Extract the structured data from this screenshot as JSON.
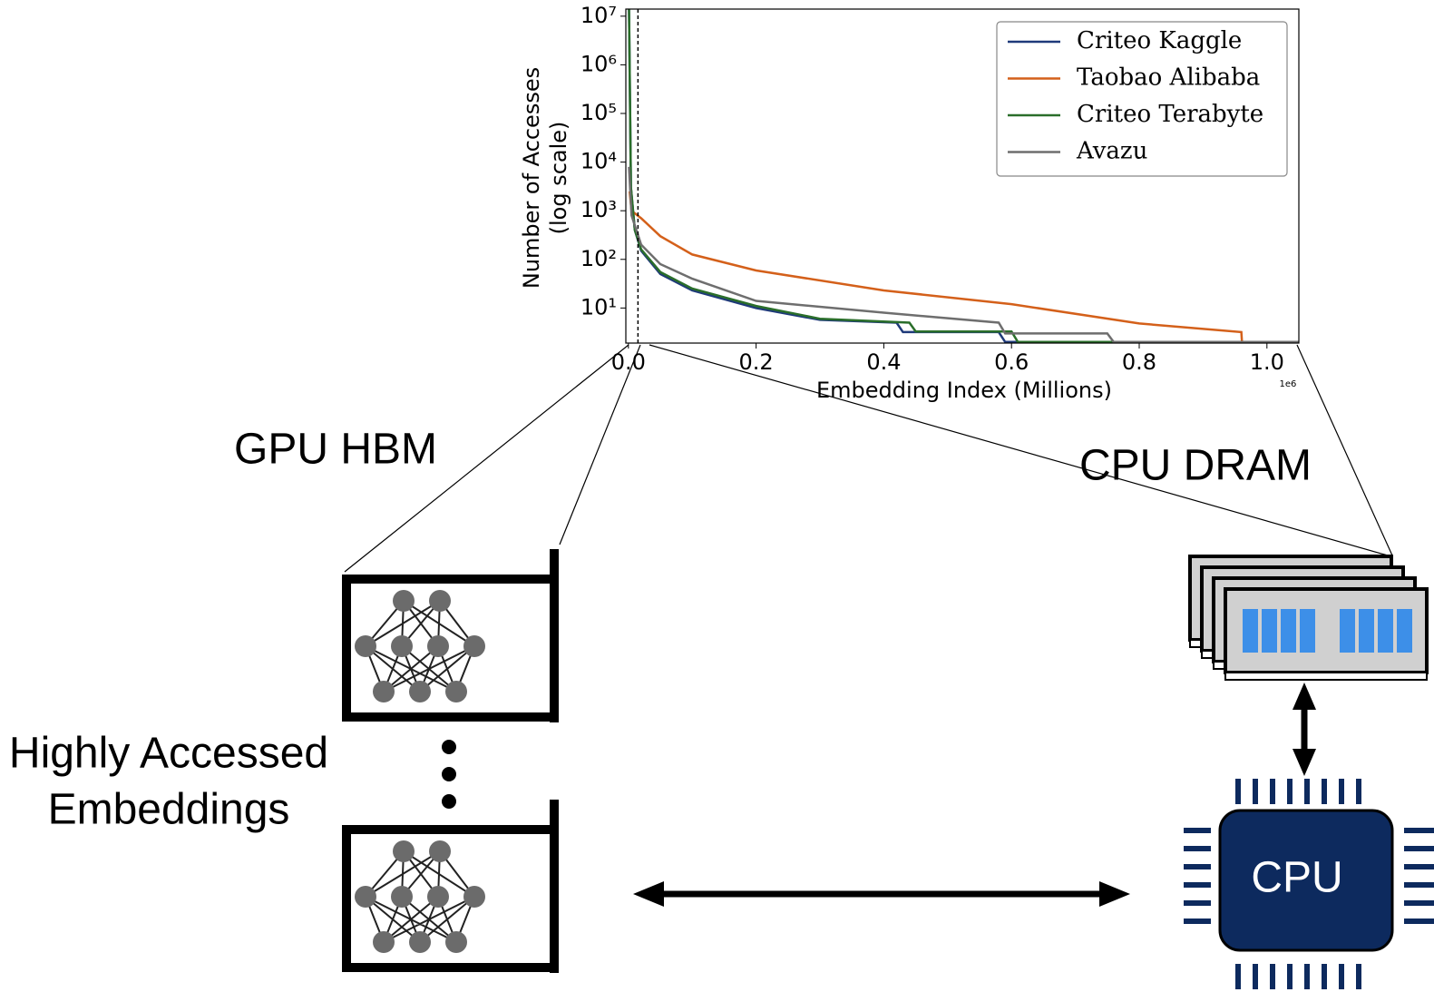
{
  "chart_data": {
    "type": "line",
    "ylabel": [
      "Number of Accesses",
      "(log scale)"
    ],
    "xlabel": "Embedding Index (Millions)",
    "x_offset_label": "1e6",
    "log_y": true,
    "xlim": [
      -0.004,
      1.05
    ],
    "ylim": [
      1.9,
      14000000
    ],
    "xticks": [
      {
        "value": 0,
        "label": "0.0"
      },
      0.2,
      0.4,
      0.6,
      0.8,
      {
        "value": 1,
        "label": "1.0"
      }
    ],
    "yticks": [
      {
        "value": 10,
        "label": "10¹"
      },
      {
        "value": 100,
        "label": "10²"
      },
      {
        "value": 1000,
        "label": "10³"
      },
      {
        "value": 10000,
        "label": "10⁴"
      },
      {
        "value": 100000,
        "label": "10⁵"
      },
      {
        "value": 1000000,
        "label": "10⁶"
      },
      {
        "value": 10000000,
        "label": "10⁷"
      }
    ],
    "legend": "upper right",
    "series": [
      {
        "name": "Criteo Kaggle",
        "color": "#1f3a7a",
        "x": [
          0.001,
          0.004,
          0.01,
          0.02,
          0.05,
          0.1,
          0.2,
          0.3,
          0.42,
          0.43,
          0.58,
          0.59,
          0.75,
          1.05
        ],
        "values": [
          14000000,
          3000,
          400,
          150,
          50,
          23,
          10,
          5.7,
          5,
          3.2,
          3.2,
          2,
          2,
          2
        ]
      },
      {
        "name": "Taobao Alibaba",
        "color": "#d4601a",
        "x": [
          0.002,
          0.005,
          0.02,
          0.05,
          0.1,
          0.2,
          0.4,
          0.6,
          0.8,
          0.96,
          0.961
        ],
        "values": [
          2500,
          1000,
          700,
          300,
          126,
          59,
          23,
          12,
          4.8,
          3.2,
          2
        ]
      },
      {
        "name": "Criteo Terabyte",
        "color": "#2a6e2a",
        "x": [
          0.001,
          0.004,
          0.01,
          0.02,
          0.05,
          0.1,
          0.2,
          0.3,
          0.44,
          0.45,
          0.6,
          0.61,
          1.05
        ],
        "values": [
          14000000,
          3000,
          400,
          160,
          55,
          25,
          11,
          6,
          5,
          3.3,
          3.3,
          2,
          2
        ]
      },
      {
        "name": "Avazu",
        "color": "#6e6e6e",
        "x": [
          0.001,
          0.005,
          0.02,
          0.05,
          0.1,
          0.2,
          0.4,
          0.58,
          0.59,
          0.75,
          0.76,
          1.05
        ],
        "values": [
          8000,
          800,
          200,
          80,
          40,
          14,
          8,
          5,
          3,
          3,
          2,
          2
        ]
      }
    ]
  },
  "diagram": {
    "gpu_label": "GPU HBM",
    "cpu_dram_label": "CPU DRAM",
    "embeddings_label": [
      "Highly Accessed",
      "Embeddings"
    ],
    "cpu_label": "CPU"
  }
}
